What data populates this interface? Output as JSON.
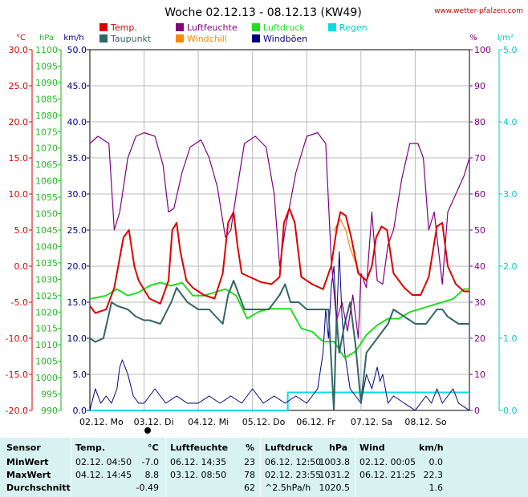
{
  "title": "Woche 02.12.13 - 08.12.13 (KW49)",
  "site": "www.wetter-pfalzen.com",
  "axes": {
    "left_units": [
      "°C",
      "hPa",
      "km/h"
    ],
    "right_units": [
      "%",
      "l/m²"
    ],
    "temp_ticks": [
      "30.0",
      "25.0",
      "20.0",
      "15.0",
      "10.0",
      "5.0",
      "0.0",
      "-5.0",
      "-10.0",
      "-15.0",
      "-20.0"
    ],
    "hpa_ticks": [
      "1100",
      "1095",
      "1090",
      "1085",
      "1080",
      "1075",
      "1070",
      "1065",
      "1060",
      "1055",
      "1050",
      "1045",
      "1040",
      "1035",
      "1030",
      "1025",
      "1020",
      "1015",
      "1010",
      "1005",
      "1000",
      "995",
      "990"
    ],
    "wind_ticks": [
      "50.0",
      "45.0",
      "40.0",
      "35.0",
      "30.0",
      "25.0",
      "20.0",
      "15.0",
      "10.0",
      "5.0",
      "0.0"
    ],
    "hum_ticks": [
      "100",
      "90",
      "80",
      "70",
      "60",
      "50",
      "40",
      "30",
      "20",
      "10",
      "0"
    ],
    "rain_ticks": [
      "5.0",
      "4.0",
      "3.0",
      "2.0",
      "1.0",
      "0.0"
    ],
    "day_labels": [
      "02.12.  Mo",
      "03.12.  Di",
      "04.12.  Mi",
      "05.12.  Do",
      "06.12.  Fr",
      "07.12.  Sa",
      "08.12.  So"
    ]
  },
  "legend": [
    {
      "label": "Temp.",
      "color": "#dd0000"
    },
    {
      "label": "Taupunkt",
      "color": "#336666"
    },
    {
      "label": "Luftfeuchte",
      "color": "#800080"
    },
    {
      "label": "Windchill",
      "color": "#ff8800"
    },
    {
      "label": "Luftdruck",
      "color": "#22dd22"
    },
    {
      "label": "Windböen",
      "color": "#000080"
    },
    {
      "label": "Regen",
      "color": "#00e0e0"
    }
  ],
  "chart_data": {
    "type": "line",
    "title": "Woche 02.12.13 - 08.12.13 (KW49)",
    "x_unit": "days since 02.12. 00:00",
    "xlim": [
      0,
      7
    ],
    "series": [
      {
        "name": "Temp.",
        "axis": "°C",
        "color": "#dd0000",
        "x": [
          0,
          0.1,
          0.3,
          0.45,
          0.62,
          0.72,
          0.82,
          0.9,
          1.1,
          1.3,
          1.45,
          1.52,
          1.6,
          1.67,
          1.78,
          1.9,
          2.1,
          2.3,
          2.45,
          2.55,
          2.65,
          2.72,
          2.8,
          2.95,
          3.15,
          3.35,
          3.5,
          3.58,
          3.68,
          3.78,
          3.9,
          4.1,
          4.3,
          4.45,
          4.55,
          4.62,
          4.72,
          4.82,
          4.95,
          5.1,
          5.2,
          5.28,
          5.38,
          5.48,
          5.6,
          5.8,
          5.95,
          6.1,
          6.25,
          6.4,
          6.5,
          6.6,
          6.75,
          6.9,
          7.0
        ],
        "y": [
          -5.5,
          -6.5,
          -6,
          -3,
          4,
          5,
          0,
          -2,
          -4.5,
          -5.2,
          -2,
          5,
          6,
          2,
          -2,
          -3,
          -4,
          -4.5,
          -1,
          6,
          7.5,
          3,
          -1,
          -1.5,
          -2.2,
          -2.5,
          -1.5,
          6,
          8,
          6,
          -1.5,
          -2.5,
          -3.2,
          0,
          5,
          7.5,
          7,
          4,
          -1,
          -2,
          0,
          4,
          5.5,
          5,
          -1,
          -3,
          -4,
          -4,
          -1.5,
          5.5,
          6,
          0,
          -2.5,
          -3.5,
          -3.5
        ]
      },
      {
        "name": "Taupunkt",
        "axis": "°C",
        "color": "#336666",
        "x": [
          0,
          0.1,
          0.25,
          0.4,
          0.5,
          0.7,
          0.85,
          1.0,
          1.1,
          1.3,
          1.5,
          1.6,
          1.8,
          2.0,
          2.2,
          2.45,
          2.55,
          2.65,
          2.85,
          3.0,
          3.3,
          3.5,
          3.6,
          3.7,
          3.85,
          4.0,
          4.2,
          4.4,
          4.5,
          4.55,
          4.6,
          4.7,
          4.8,
          4.9,
          5.0,
          5.1,
          5.3,
          5.5,
          5.6,
          5.8,
          6.0,
          6.2,
          6.3,
          6.4,
          6.5,
          6.6,
          6.8,
          7.0
        ],
        "y": [
          -10,
          -10.5,
          -10,
          -5,
          -5.5,
          -6,
          -7,
          -7.5,
          -7.5,
          -8,
          -5,
          -3,
          -5,
          -6,
          -6,
          -8,
          -4,
          -2,
          -6,
          -6,
          -6,
          -4,
          -2.5,
          -5,
          -5,
          -6,
          -6,
          -6,
          -20,
          -7,
          -12,
          -8,
          -5,
          -11,
          -19,
          -12,
          -10,
          -8,
          -6,
          -7,
          -8,
          -8,
          -7,
          -6,
          -6,
          -7,
          -8,
          -8
        ]
      },
      {
        "name": "Windchill",
        "axis": "°C",
        "color": "#ff8800",
        "x": [
          4.5,
          4.62,
          4.72,
          4.8,
          4.9,
          4.97
        ],
        "y": [
          5,
          6.5,
          5,
          2.5,
          0.5,
          -1
        ]
      },
      {
        "name": "Luftfeuchte",
        "axis": "%",
        "color": "#800080",
        "x": [
          0,
          0.15,
          0.35,
          0.45,
          0.55,
          0.7,
          0.85,
          1.0,
          1.2,
          1.35,
          1.45,
          1.55,
          1.7,
          1.85,
          2.05,
          2.2,
          2.35,
          2.5,
          2.6,
          2.7,
          2.85,
          3.05,
          3.25,
          3.4,
          3.5,
          3.6,
          3.8,
          4.0,
          4.2,
          4.35,
          4.45,
          4.55,
          4.65,
          4.75,
          4.85,
          4.95,
          5.0,
          5.1,
          5.2,
          5.3,
          5.4,
          5.5,
          5.6,
          5.75,
          5.9,
          6.05,
          6.15,
          6.25,
          6.35,
          6.5,
          6.6,
          6.75,
          6.9,
          7.0
        ],
        "y": [
          74,
          76,
          74,
          50,
          55,
          70,
          76,
          77,
          76,
          68,
          55,
          56,
          66,
          73,
          75,
          70,
          62,
          48,
          50,
          60,
          74,
          76,
          73,
          60,
          40,
          50,
          66,
          76,
          77,
          74,
          42,
          25,
          30,
          22,
          32,
          20,
          38,
          34,
          55,
          36,
          35,
          46,
          50,
          64,
          74,
          74,
          70,
          50,
          55,
          35,
          55,
          60,
          65,
          70
        ]
      },
      {
        "name": "Luftdruck",
        "axis": "hPa",
        "color": "#22dd22",
        "x": [
          0,
          0.3,
          0.5,
          0.7,
          0.9,
          1.1,
          1.3,
          1.5,
          1.7,
          1.9,
          2.1,
          2.3,
          2.5,
          2.7,
          2.9,
          3.1,
          3.3,
          3.5,
          3.7,
          3.9,
          4.1,
          4.3,
          4.5,
          4.7,
          4.9,
          5.1,
          5.3,
          5.5,
          5.7,
          5.9,
          6.1,
          6.3,
          6.5,
          6.7,
          6.9,
          7.0
        ],
        "y": [
          1024,
          1025,
          1027,
          1025,
          1026,
          1028,
          1029,
          1028,
          1029,
          1025,
          1025,
          1026,
          1027,
          1025,
          1018,
          1020,
          1021,
          1021,
          1021,
          1015,
          1014,
          1011,
          1011,
          1006,
          1008,
          1013,
          1016,
          1018,
          1018,
          1020,
          1021,
          1022,
          1023,
          1024,
          1027,
          1027
        ]
      },
      {
        "name": "Windböen",
        "axis": "km/h",
        "color": "#000080",
        "x": [
          0,
          0.1,
          0.2,
          0.3,
          0.4,
          0.5,
          0.55,
          0.6,
          0.7,
          0.8,
          0.9,
          1.0,
          1.2,
          1.4,
          1.6,
          1.8,
          2.0,
          2.2,
          2.4,
          2.6,
          2.8,
          3.0,
          3.2,
          3.4,
          3.6,
          3.8,
          4.0,
          4.2,
          4.3,
          4.35,
          4.4,
          4.45,
          4.5,
          4.55,
          4.6,
          4.65,
          4.7,
          4.8,
          4.9,
          5.0,
          5.1,
          5.2,
          5.3,
          5.35,
          5.4,
          5.5,
          5.6,
          5.8,
          6.0,
          6.2,
          6.3,
          6.4,
          6.5,
          6.6,
          6.7,
          6.8,
          7.0
        ],
        "y": [
          0,
          3,
          1,
          2,
          1,
          3,
          6,
          7,
          5,
          2,
          1,
          1,
          3,
          1,
          2,
          1,
          1,
          2,
          1,
          2,
          1,
          3,
          1,
          2,
          1,
          2,
          1,
          3,
          8,
          14,
          10,
          17,
          20,
          12,
          22,
          13,
          8,
          3,
          2,
          1,
          5,
          3,
          6,
          4,
          5,
          1,
          2,
          1,
          0,
          2,
          1,
          3,
          1,
          2,
          3,
          1,
          0
        ]
      },
      {
        "name": "Regen",
        "axis": "l/m²",
        "color": "#00e0e0",
        "x": [
          0,
          3.65,
          3.65,
          7.0
        ],
        "y": [
          0,
          0,
          0.25,
          0.25
        ]
      }
    ]
  },
  "table": {
    "headers": {
      "sensor": "Sensor",
      "temp": "Temp.",
      "temp_unit": "°C",
      "hum": "Luftfeuchte",
      "hum_unit": "%",
      "press": "Luftdruck",
      "press_unit": "hPa",
      "wind": "Wind",
      "wind_unit": "km/h"
    },
    "rows": [
      {
        "label": "MinWert",
        "temp_time": "02.12.  04:50",
        "temp_val": "-7.0",
        "hum_time": "06.12.  14:35",
        "hum_val": "23",
        "press_time": "06.12.  12:50",
        "press_val": "1003.8",
        "wind_time": "02.12.  00:05",
        "wind_val": "0.0"
      },
      {
        "label": "MaxWert",
        "temp_time": "04.12.  14:45",
        "temp_val": "8.8",
        "hum_time": "03.12.  08:50",
        "hum_val": "78",
        "press_time": "02.12.  23:55",
        "press_val": "1031.2",
        "wind_time": "06.12.  21:25",
        "wind_val": "22.3"
      },
      {
        "label": "Durchschnitt",
        "temp_time": "",
        "temp_val": "-0.49",
        "hum_time": "",
        "hum_val": "62",
        "press_time": "^2.5hPa/h",
        "press_val": "1020.5",
        "wind_time": "",
        "wind_val": "1.6"
      }
    ]
  }
}
